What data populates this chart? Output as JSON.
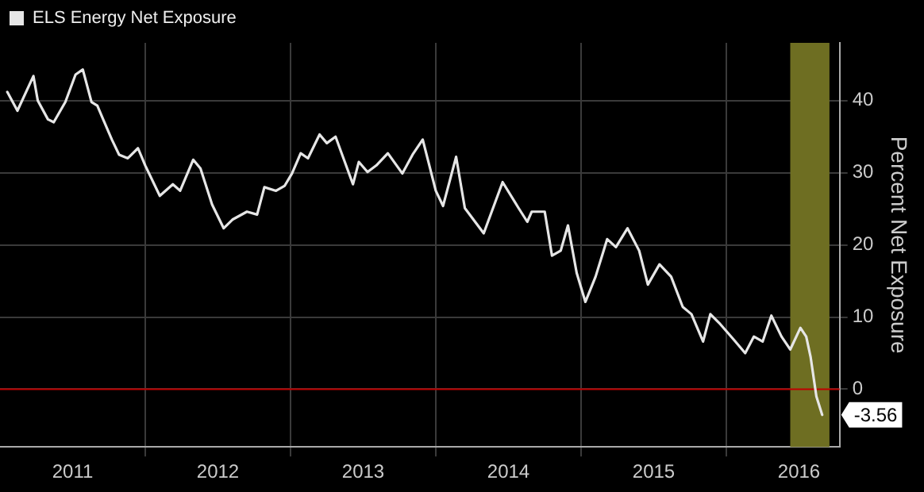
{
  "chart_data": {
    "type": "line",
    "ylabel": "Percent Net Exposure",
    "legend": "top left",
    "grid": true,
    "marker": "none",
    "line_style": "solid",
    "xlim": [
      2011.0,
      2016.78
    ],
    "ylim": [
      -8,
      48
    ],
    "xticks": [
      {
        "value": 2011.5,
        "label": "2011"
      },
      {
        "value": 2012,
        "label": null
      },
      {
        "value": 2012.5,
        "label": "2012"
      },
      {
        "value": 2013,
        "label": null
      },
      {
        "value": 2013.5,
        "label": "2013"
      },
      {
        "value": 2014,
        "label": null
      },
      {
        "value": 2014.5,
        "label": "2014"
      },
      {
        "value": 2015,
        "label": null
      },
      {
        "value": 2015.5,
        "label": "2015"
      },
      {
        "value": 2016,
        "label": null
      },
      {
        "value": 2016.5,
        "label": "2016"
      }
    ],
    "yticks": [
      0,
      10,
      20,
      30,
      40
    ],
    "series": [
      {
        "name": "ELS Energy Net Exposure",
        "color": "#e6e6e6",
        "x": [
          2011.05,
          2011.12,
          2011.23,
          2011.26,
          2011.33,
          2011.37,
          2011.45,
          2011.52,
          2011.57,
          2011.63,
          2011.67,
          2011.71,
          2011.77,
          2011.82,
          2011.88,
          2011.95,
          2012.0,
          2012.1,
          2012.19,
          2012.24,
          2012.33,
          2012.38,
          2012.46,
          2012.54,
          2012.6,
          2012.7,
          2012.77,
          2012.82,
          2012.9,
          2012.96,
          2013.01,
          2013.07,
          2013.12,
          2013.2,
          2013.25,
          2013.31,
          2013.43,
          2013.47,
          2013.53,
          2013.59,
          2013.67,
          2013.77,
          2013.84,
          2013.91,
          2014.0,
          2014.05,
          2014.14,
          2014.2,
          2014.33,
          2014.46,
          2014.57,
          2014.63,
          2014.66,
          2014.75,
          2014.8,
          2014.86,
          2014.91,
          2014.97,
          2015.03,
          2015.1,
          2015.18,
          2015.24,
          2015.32,
          2015.4,
          2015.46,
          2015.54,
          2015.62,
          2015.7,
          2015.76,
          2015.84,
          2015.89,
          2015.95,
          2016.05,
          2016.13,
          2016.19,
          2016.25,
          2016.31,
          2016.38,
          2016.44,
          2016.51,
          2016.55,
          2016.58,
          2016.62,
          2016.66
        ],
        "values": [
          41.2,
          38.6,
          43.4,
          40,
          37.4,
          37,
          39.8,
          43.6,
          44.3,
          39.8,
          39.3,
          37.4,
          34.6,
          32.5,
          32,
          33.4,
          31,
          26.8,
          28.4,
          27.5,
          31.8,
          30.6,
          25.6,
          22.3,
          23.5,
          24.6,
          24.2,
          28,
          27.5,
          28.2,
          29.9,
          32.7,
          32,
          35.3,
          34.1,
          35,
          28.4,
          31.5,
          30.1,
          31,
          32.7,
          29.9,
          32.5,
          34.6,
          27.5,
          25.4,
          32.2,
          25.1,
          21.6,
          28.7,
          25.1,
          23.2,
          24.6,
          24.6,
          18.5,
          19.2,
          22.7,
          16.1,
          12.1,
          15.6,
          20.8,
          19.7,
          22.3,
          19.2,
          14.5,
          17.3,
          15.6,
          11.4,
          10.4,
          6.6,
          10.4,
          9.2,
          6.9,
          5,
          7.3,
          6.6,
          10.2,
          7.3,
          5.5,
          8.5,
          7.3,
          4.5,
          -1,
          -3.56
        ]
      }
    ],
    "ref_lines": [
      {
        "axis": "y",
        "value": 0,
        "color": "#c00000"
      }
    ],
    "bands": [
      {
        "axis": "x",
        "from": 2016.44,
        "to": 2016.71,
        "color": "#6e6e22"
      }
    ],
    "annotations": [
      "-3.56"
    ]
  }
}
